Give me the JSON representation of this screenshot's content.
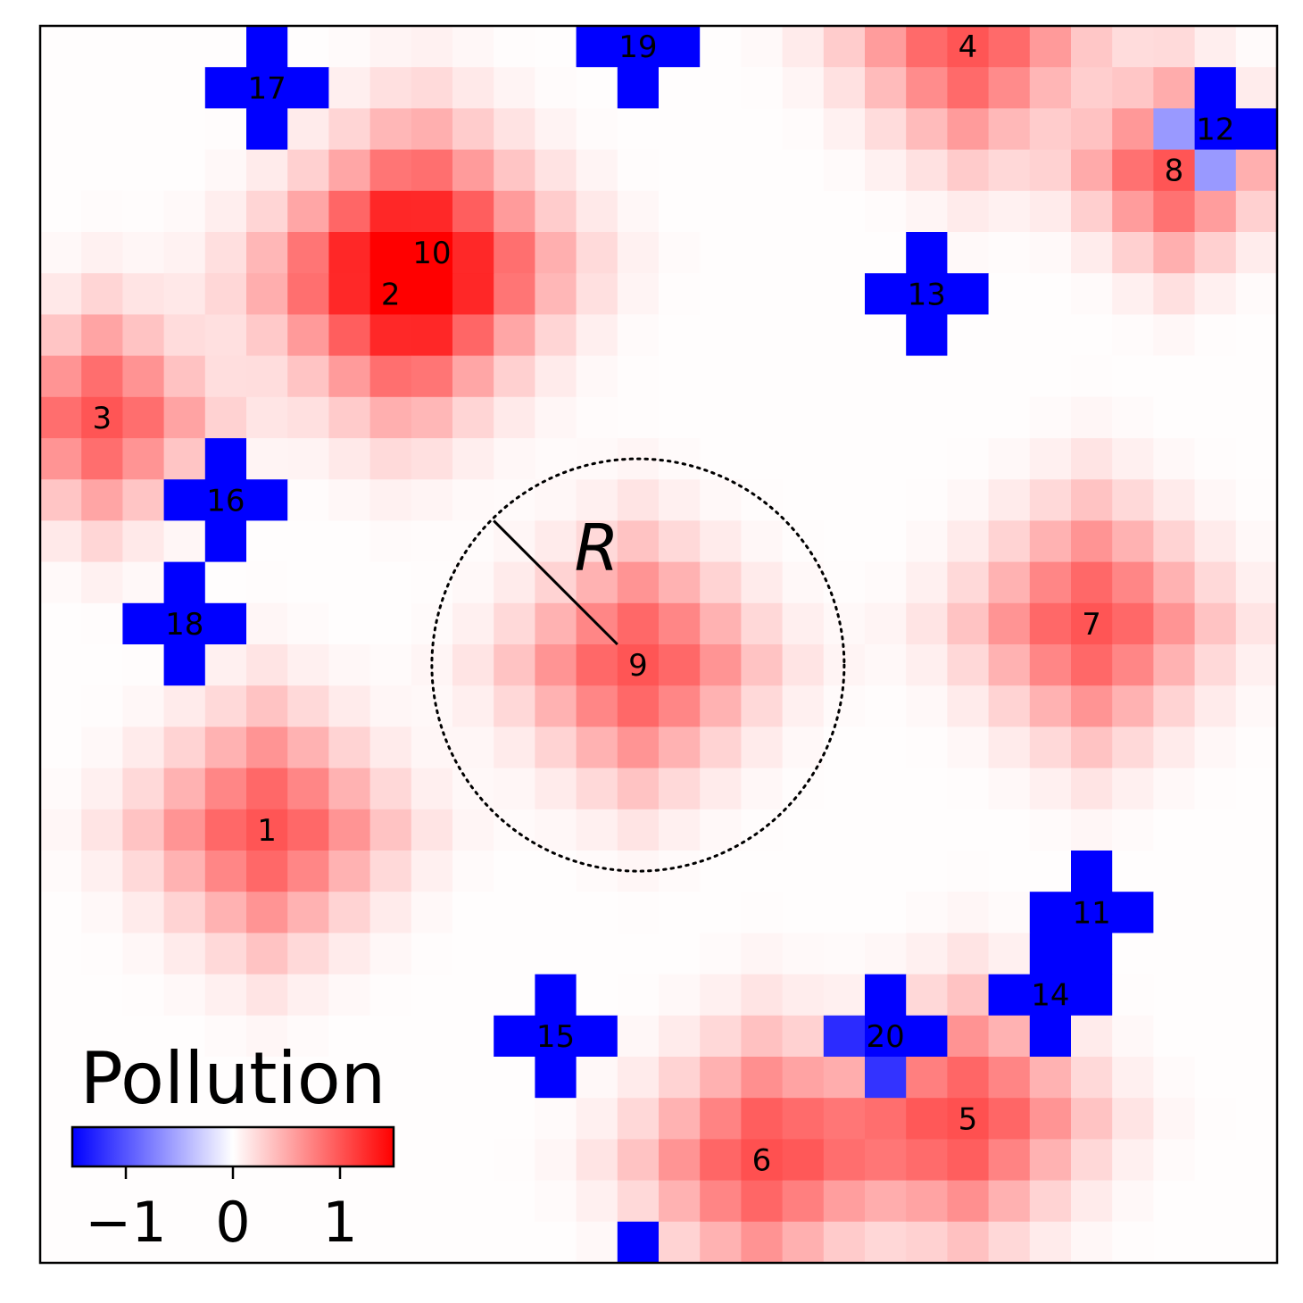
{
  "chart_data": {
    "type": "heatmap",
    "title": "",
    "grid": {
      "cols": 30,
      "rows": 30,
      "x_range": [
        0,
        30
      ],
      "y_range": [
        0,
        30
      ]
    },
    "value_range": [
      -1.5,
      1.5
    ],
    "background_value": 0.01,
    "colormap": "bwr",
    "colormap_stops": [
      "#0000ff",
      "#ffffff",
      "#ff0000"
    ],
    "sources": [
      {
        "id": "1",
        "x": 5.5,
        "y": 19.5,
        "kind": "positive",
        "amplitude": 1.0,
        "spread": 1.4
      },
      {
        "id": "2",
        "x": 8.5,
        "y": 6.5,
        "kind": "positive",
        "amplitude": 0.9,
        "spread": 1.5
      },
      {
        "id": "3",
        "x": 1.5,
        "y": 9.5,
        "kind": "positive",
        "amplitude": 1.0,
        "spread": 1.2
      },
      {
        "id": "4",
        "x": 22.5,
        "y": 0.5,
        "kind": "positive",
        "amplitude": 1.0,
        "spread": 1.3
      },
      {
        "id": "5",
        "x": 22.5,
        "y": 26.5,
        "kind": "positive",
        "amplitude": 1.0,
        "spread": 1.4
      },
      {
        "id": "6",
        "x": 17.5,
        "y": 27.5,
        "kind": "positive",
        "amplitude": 1.0,
        "spread": 1.4
      },
      {
        "id": "7",
        "x": 25.5,
        "y": 14.5,
        "kind": "positive",
        "amplitude": 1.0,
        "spread": 1.4
      },
      {
        "id": "8",
        "x": 27.5,
        "y": 3.5,
        "kind": "positive",
        "amplitude": 1.0,
        "spread": 1.1
      },
      {
        "id": "9",
        "x": 14.5,
        "y": 15.5,
        "kind": "positive",
        "amplitude": 1.0,
        "spread": 1.4
      },
      {
        "id": "10",
        "x": 9.5,
        "y": 5.5,
        "kind": "positive",
        "amplitude": 0.9,
        "spread": 1.5
      },
      {
        "id": "11",
        "x": 25.5,
        "y": 21.5,
        "kind": "negative",
        "amplitude": -1.5
      },
      {
        "id": "12",
        "x": 28.5,
        "y": 2.5,
        "kind": "negative",
        "amplitude": -1.5
      },
      {
        "id": "13",
        "x": 21.5,
        "y": 6.5,
        "kind": "negative",
        "amplitude": -1.5
      },
      {
        "id": "14",
        "x": 24.5,
        "y": 23.5,
        "kind": "negative",
        "amplitude": -1.5
      },
      {
        "id": "15",
        "x": 12.5,
        "y": 24.5,
        "kind": "negative",
        "amplitude": -1.5
      },
      {
        "id": "16",
        "x": 4.5,
        "y": 11.5,
        "kind": "negative",
        "amplitude": -1.5
      },
      {
        "id": "17",
        "x": 5.5,
        "y": 1.5,
        "kind": "negative",
        "amplitude": -1.5
      },
      {
        "id": "18",
        "x": 3.5,
        "y": 14.5,
        "kind": "negative",
        "amplitude": -1.5
      },
      {
        "id": "19",
        "x": 14.5,
        "y": 0.5,
        "kind": "negative",
        "amplitude": -1.5
      },
      {
        "id": "20",
        "x": 20.5,
        "y": 24.5,
        "kind": "negative",
        "amplitude": -1.5
      }
    ],
    "extra_negative_cells": [
      [
        14,
        29
      ]
    ],
    "annotation": {
      "symbol": "R",
      "circle": {
        "cx": 14.5,
        "cy": 15.5,
        "r": 5.0,
        "style": "dotted"
      },
      "radius_line": {
        "from": [
          14.0,
          15.0
        ],
        "to": [
          11.0,
          12.0
        ]
      }
    },
    "colorbar": {
      "label": "Pollution",
      "ticks": [
        -1,
        0,
        1
      ],
      "tick_labels": [
        "−1",
        "0",
        "1"
      ],
      "range": [
        -1.5,
        1.5
      ],
      "placement": "lower-left"
    }
  }
}
